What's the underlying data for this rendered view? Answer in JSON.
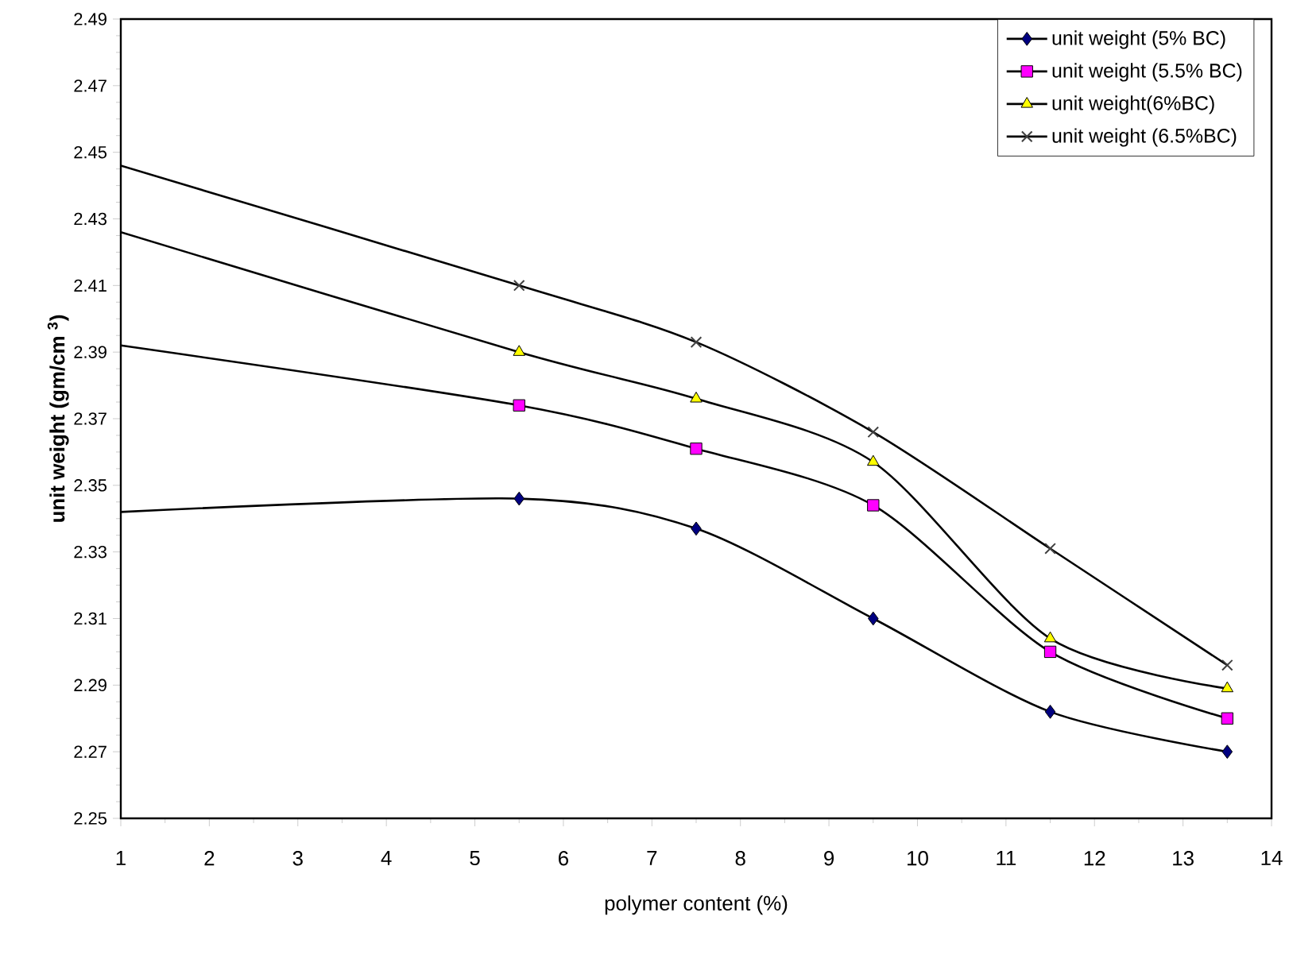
{
  "chart_data": {
    "type": "line",
    "xlabel": "polymer content (%)",
    "ylabel": "unit weight (gm/cm $^{3}$)",
    "xlim": [
      1,
      14
    ],
    "xticks": [
      1,
      2,
      3,
      4,
      5,
      6,
      7,
      8,
      9,
      10,
      11,
      12,
      13,
      14
    ],
    "ylim": [
      2.25,
      2.49
    ],
    "yticks": [
      2.25,
      2.27,
      2.29,
      2.31,
      2.33,
      2.35,
      2.37,
      2.39,
      2.41,
      2.43,
      2.45,
      2.47,
      2.49
    ],
    "x": [
      1,
      5.5,
      7.5,
      9.5,
      11.5,
      13.5
    ],
    "legend": "top right",
    "grid": false,
    "series": [
      {
        "name": "unit weight (5% BC)",
        "color": "#000080",
        "marker": "diamond",
        "values": [
          2.342,
          2.346,
          2.337,
          2.31,
          2.282,
          2.27
        ]
      },
      {
        "name": "unit weight (5.5% BC)",
        "color": "#ff00ff",
        "marker": "square",
        "values": [
          2.392,
          2.374,
          2.361,
          2.344,
          2.3,
          2.28
        ]
      },
      {
        "name": "unit weight(6%BC)",
        "color": "#ffff00",
        "marker": "triangle",
        "values": [
          2.426,
          2.39,
          2.376,
          2.357,
          2.304,
          2.289
        ]
      },
      {
        "name": "unit weight (6.5%BC)",
        "color": "#404040",
        "marker": "cross",
        "values": [
          2.446,
          2.41,
          2.393,
          2.366,
          2.331,
          2.296
        ]
      }
    ]
  }
}
